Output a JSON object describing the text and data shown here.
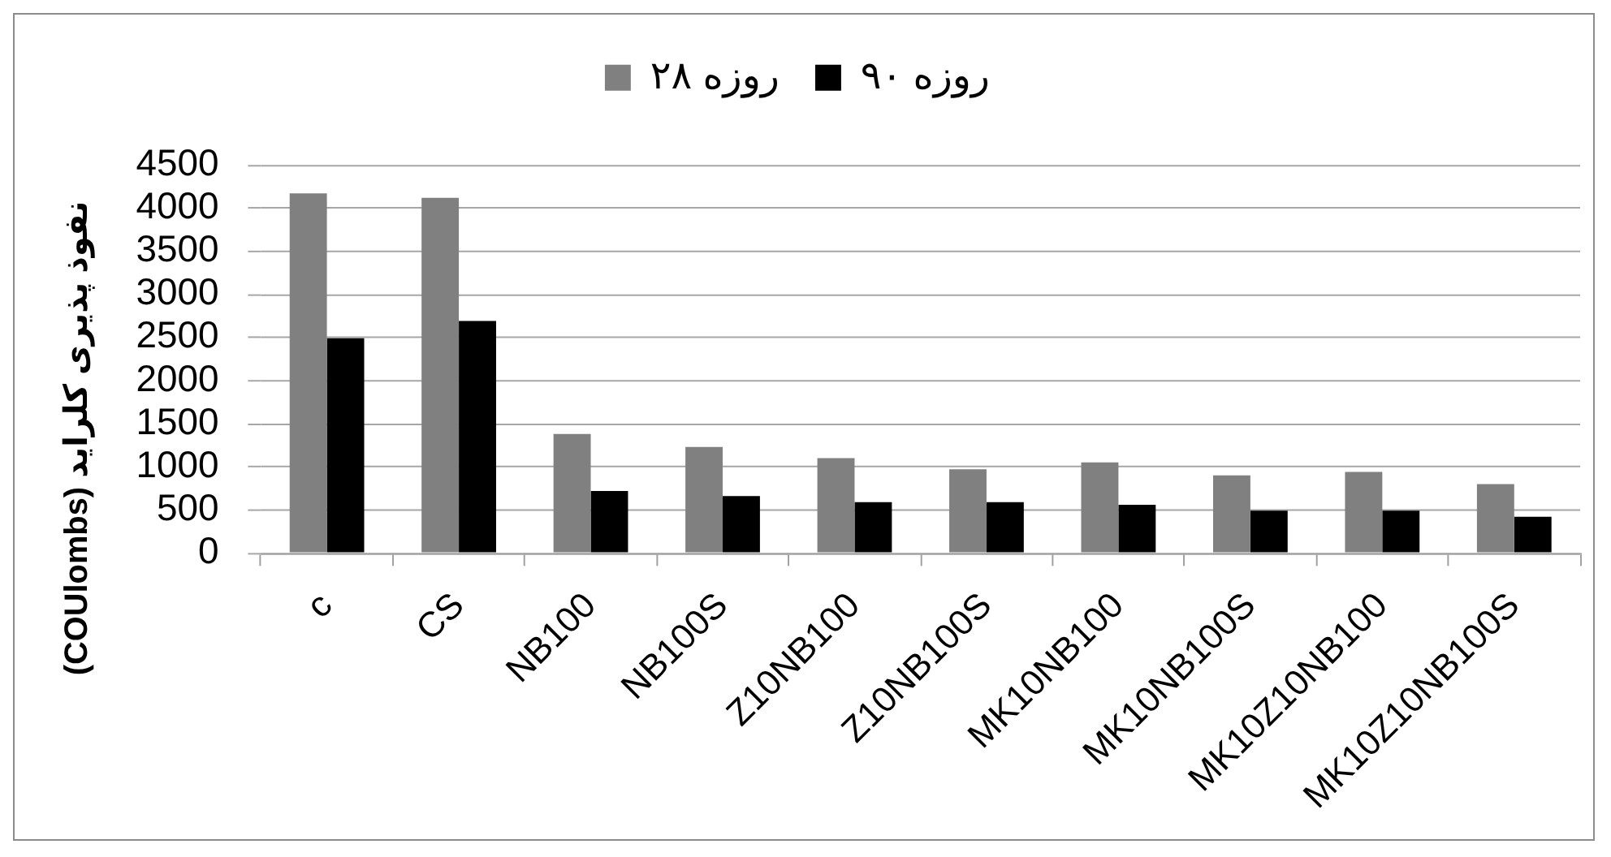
{
  "chart_data": {
    "type": "bar",
    "categories": [
      "c",
      "CS",
      "NB100",
      "NB100S",
      "Z10NB100",
      "Z10NB100S",
      "MK10NB100",
      "MK10NB100S",
      "MK10Z10NB100",
      "MK10Z10NB100S"
    ],
    "series": [
      {
        "name": "۲۸ روزه",
        "color": "#808080",
        "values": [
          4170,
          4120,
          1380,
          1230,
          1100,
          970,
          1050,
          900,
          940,
          800
        ]
      },
      {
        "name": "۹۰ روزه",
        "color": "#000000",
        "values": [
          2490,
          2690,
          720,
          660,
          590,
          590,
          560,
          490,
          490,
          420
        ]
      }
    ],
    "ylabel": "نفوذ پذیری کلراید (COUlombs)",
    "ylim": [
      0,
      4500
    ],
    "yticks": [
      0,
      500,
      1000,
      1500,
      2000,
      2500,
      3000,
      3500,
      4000,
      4500
    ],
    "grid": "y",
    "legend": "top"
  }
}
